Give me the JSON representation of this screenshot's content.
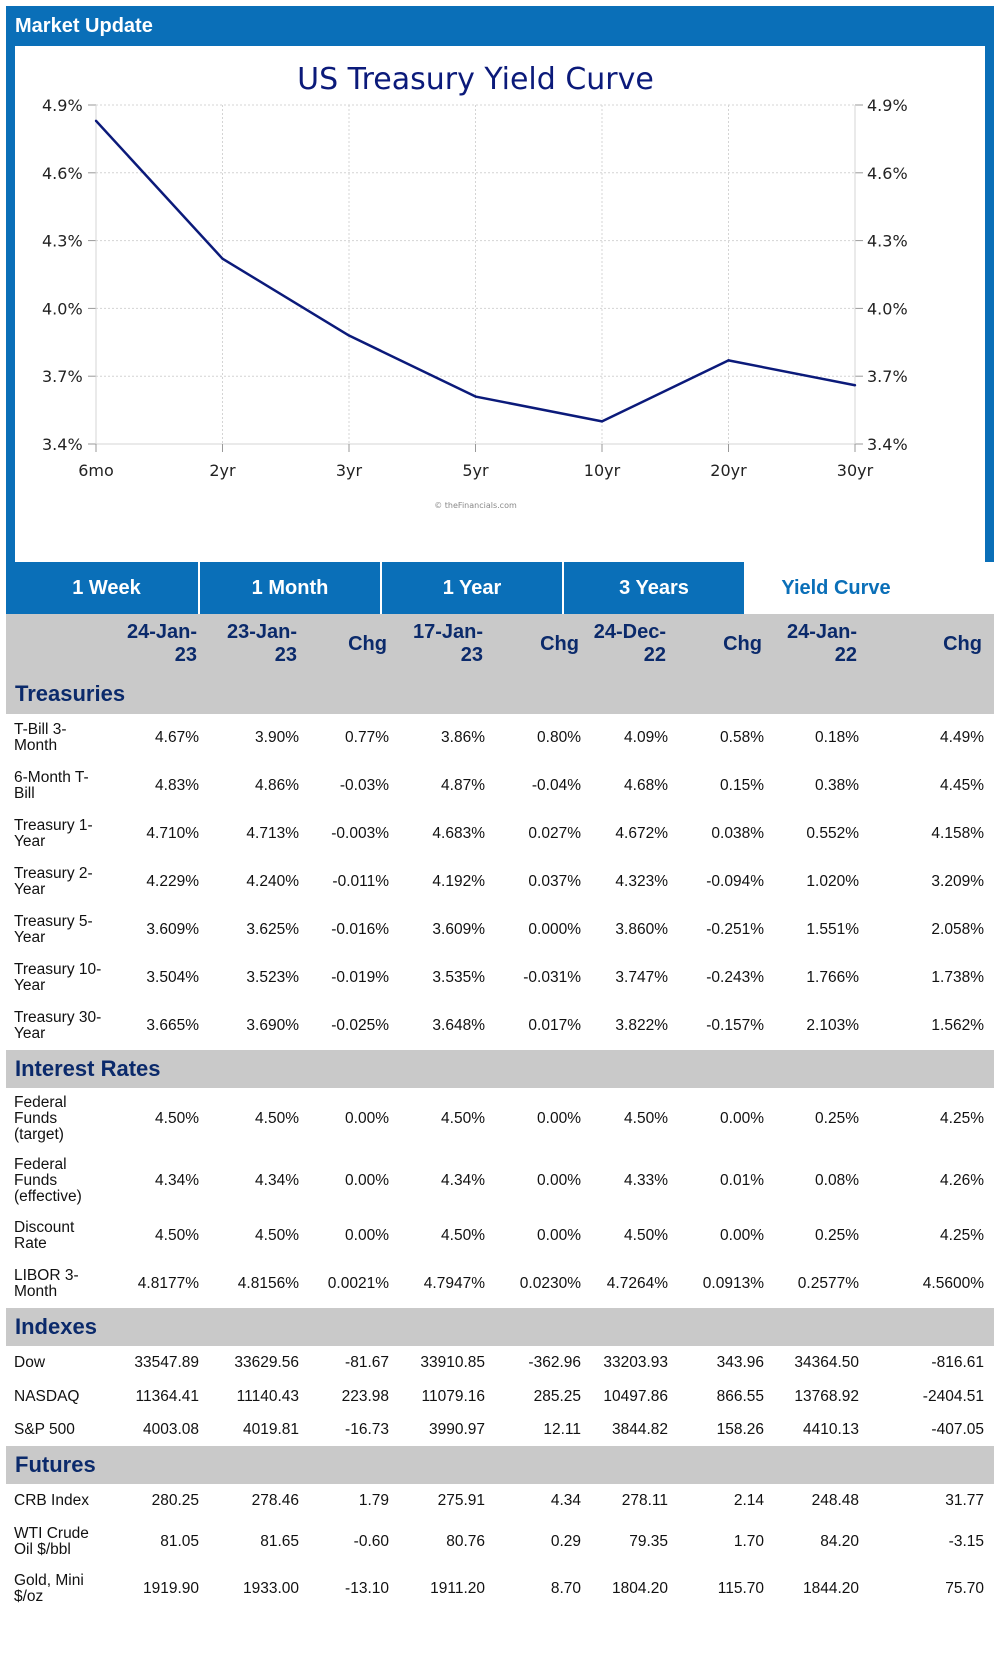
{
  "header": {
    "title": "Market Update"
  },
  "chart_data": {
    "type": "line",
    "title": "US Treasury Yield Curve",
    "x": [
      "6mo",
      "2yr",
      "3yr",
      "5yr",
      "10yr",
      "20yr",
      "30yr"
    ],
    "y_ticks": [
      "4.9%",
      "4.6%",
      "4.3%",
      "4.0%",
      "3.7%",
      "3.4%"
    ],
    "ylim": [
      3.4,
      4.9
    ],
    "y_tick_values": [
      4.9,
      4.6,
      4.3,
      4.0,
      3.7,
      3.4
    ],
    "series": [
      {
        "values": [
          4.83,
          4.22,
          3.88,
          3.61,
          3.5,
          3.77,
          3.66
        ],
        "color": "#0b1a7a"
      }
    ],
    "grid": true,
    "watermark": "© theFinancials.com"
  },
  "tabs": [
    {
      "label": "1 Week",
      "active": false
    },
    {
      "label": "1 Month",
      "active": false
    },
    {
      "label": "1 Year",
      "active": false
    },
    {
      "label": "3 Years",
      "active": false
    },
    {
      "label": "Yield Curve",
      "active": true
    }
  ],
  "table": {
    "columns": [
      "",
      "24-Jan-23",
      "23-Jan-23",
      "Chg",
      "17-Jan-23",
      "Chg",
      "24-Dec-22",
      "Chg",
      "24-Jan-22",
      "Chg"
    ],
    "sections": [
      {
        "name": "Treasuries",
        "rows": [
          {
            "label": "T-Bill 3-Month",
            "cells": [
              "4.67%",
              "3.90%",
              "0.77%",
              "3.86%",
              "0.80%",
              "4.09%",
              "0.58%",
              "0.18%",
              "4.49%"
            ]
          },
          {
            "label": "6-Month T-Bill",
            "cells": [
              "4.83%",
              "4.86%",
              "-0.03%",
              "4.87%",
              "-0.04%",
              "4.68%",
              "0.15%",
              "0.38%",
              "4.45%"
            ]
          },
          {
            "label": "Treasury 1-Year",
            "cells": [
              "4.710%",
              "4.713%",
              "-0.003%",
              "4.683%",
              "0.027%",
              "4.672%",
              "0.038%",
              "0.552%",
              "4.158%"
            ]
          },
          {
            "label": "Treasury 2-Year",
            "cells": [
              "4.229%",
              "4.240%",
              "-0.011%",
              "4.192%",
              "0.037%",
              "4.323%",
              "-0.094%",
              "1.020%",
              "3.209%"
            ]
          },
          {
            "label": "Treasury 5-Year",
            "cells": [
              "3.609%",
              "3.625%",
              "-0.016%",
              "3.609%",
              "0.000%",
              "3.860%",
              "-0.251%",
              "1.551%",
              "2.058%"
            ]
          },
          {
            "label": "Treasury 10-Year",
            "cells": [
              "3.504%",
              "3.523%",
              "-0.019%",
              "3.535%",
              "-0.031%",
              "3.747%",
              "-0.243%",
              "1.766%",
              "1.738%"
            ]
          },
          {
            "label": "Treasury 30-Year",
            "cells": [
              "3.665%",
              "3.690%",
              "-0.025%",
              "3.648%",
              "0.017%",
              "3.822%",
              "-0.157%",
              "2.103%",
              "1.562%"
            ]
          }
        ]
      },
      {
        "name": "Interest Rates",
        "rows": [
          {
            "label": "Federal Funds (target)",
            "cells": [
              "4.50%",
              "4.50%",
              "0.00%",
              "4.50%",
              "0.00%",
              "4.50%",
              "0.00%",
              "0.25%",
              "4.25%"
            ]
          },
          {
            "label": "Federal Funds (effective)",
            "cells": [
              "4.34%",
              "4.34%",
              "0.00%",
              "4.34%",
              "0.00%",
              "4.33%",
              "0.01%",
              "0.08%",
              "4.26%"
            ]
          },
          {
            "label": "Discount Rate",
            "cells": [
              "4.50%",
              "4.50%",
              "0.00%",
              "4.50%",
              "0.00%",
              "4.50%",
              "0.00%",
              "0.25%",
              "4.25%"
            ]
          },
          {
            "label": "LIBOR 3-Month",
            "cells": [
              "4.8177%",
              "4.8156%",
              "0.0021%",
              "4.7947%",
              "0.0230%",
              "4.7264%",
              "0.0913%",
              "0.2577%",
              "4.5600%"
            ]
          }
        ]
      },
      {
        "name": "Indexes",
        "rows": [
          {
            "label": "Dow",
            "cells": [
              "33547.89",
              "33629.56",
              "-81.67",
              "33910.85",
              "-362.96",
              "33203.93",
              "343.96",
              "34364.50",
              "-816.61"
            ]
          },
          {
            "label": "NASDAQ",
            "cells": [
              "11364.41",
              "11140.43",
              "223.98",
              "11079.16",
              "285.25",
              "10497.86",
              "866.55",
              "13768.92",
              "-2404.51"
            ]
          },
          {
            "label": "S&P 500",
            "cells": [
              "4003.08",
              "4019.81",
              "-16.73",
              "3990.97",
              "12.11",
              "3844.82",
              "158.26",
              "4410.13",
              "-407.05"
            ]
          }
        ]
      },
      {
        "name": "Futures",
        "rows": [
          {
            "label": "CRB Index",
            "cells": [
              "280.25",
              "278.46",
              "1.79",
              "275.91",
              "4.34",
              "278.11",
              "2.14",
              "248.48",
              "31.77"
            ]
          },
          {
            "label": "WTI Crude Oil $/bbl",
            "cells": [
              "81.05",
              "81.65",
              "-0.60",
              "80.76",
              "0.29",
              "79.35",
              "1.70",
              "84.20",
              "-3.15"
            ]
          },
          {
            "label": "Gold, Mini $/oz",
            "cells": [
              "1919.90",
              "1933.00",
              "-13.10",
              "1911.20",
              "8.70",
              "1804.20",
              "115.70",
              "1844.20",
              "75.70"
            ]
          }
        ]
      }
    ]
  },
  "colors": {
    "brand_blue": "#0a6fb8",
    "positive": "#1a8a1a",
    "negative": "#e01010",
    "section_gray": "#c9c9c9",
    "header_text": "#0b2a6b"
  }
}
